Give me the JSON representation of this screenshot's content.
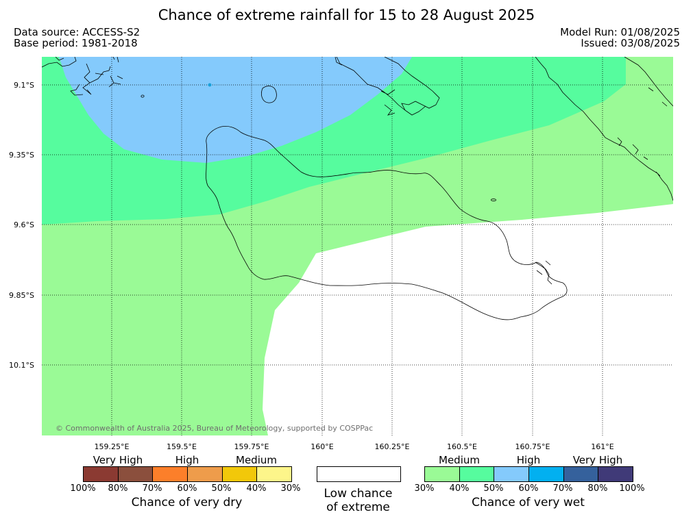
{
  "header": {
    "title": "Chance of extreme rainfall for 15 to 28 August 2025",
    "data_source": "Data source: ACCESS-S2",
    "base_period": "Base period: 1981-2018",
    "model_run": "Model Run: 01/08/2025",
    "issued": "Issued: 03/08/2025"
  },
  "map": {
    "lat_labels": [
      "9.1°S",
      "9.35°S",
      "9.6°S",
      "9.85°S",
      "10.1°S"
    ],
    "lon_labels": [
      "159.25°E",
      "159.5°E",
      "159.75°E",
      "160°E",
      "160.25°E",
      "160.5°E",
      "160.75°E",
      "161°E"
    ],
    "copyright": "© Commonwealth of Australia 2025, Bureau of Meteorology, supported by COSPPac",
    "zone_colors": {
      "medium_wet": "#9afa96",
      "high_wet": "#56fc9e",
      "higher_wet": "#84cafc",
      "low": "#ffffff"
    }
  },
  "legend": {
    "dry": {
      "headings": [
        "Very High",
        "High",
        "Medium"
      ],
      "colors": [
        "#8b3a32",
        "#8b4f3d",
        "#fc7f2a",
        "#ee9c4b",
        "#f2c80a",
        "#fdf58a"
      ],
      "ticks": [
        "100%",
        "80%",
        "70%",
        "60%",
        "50%",
        "40%",
        "30%"
      ],
      "title": "Chance of very dry"
    },
    "low": {
      "title_line1": "Low chance",
      "title_line2": "of extreme",
      "color": "#ffffff"
    },
    "wet": {
      "headings": [
        "Medium",
        "High",
        "Very High"
      ],
      "colors": [
        "#9afa96",
        "#56fc9e",
        "#84cafc",
        "#02b0f0",
        "#35619c",
        "#403a78"
      ],
      "ticks": [
        "30%",
        "40%",
        "50%",
        "60%",
        "70%",
        "80%",
        "100%"
      ],
      "title": "Chance of very wet"
    }
  }
}
